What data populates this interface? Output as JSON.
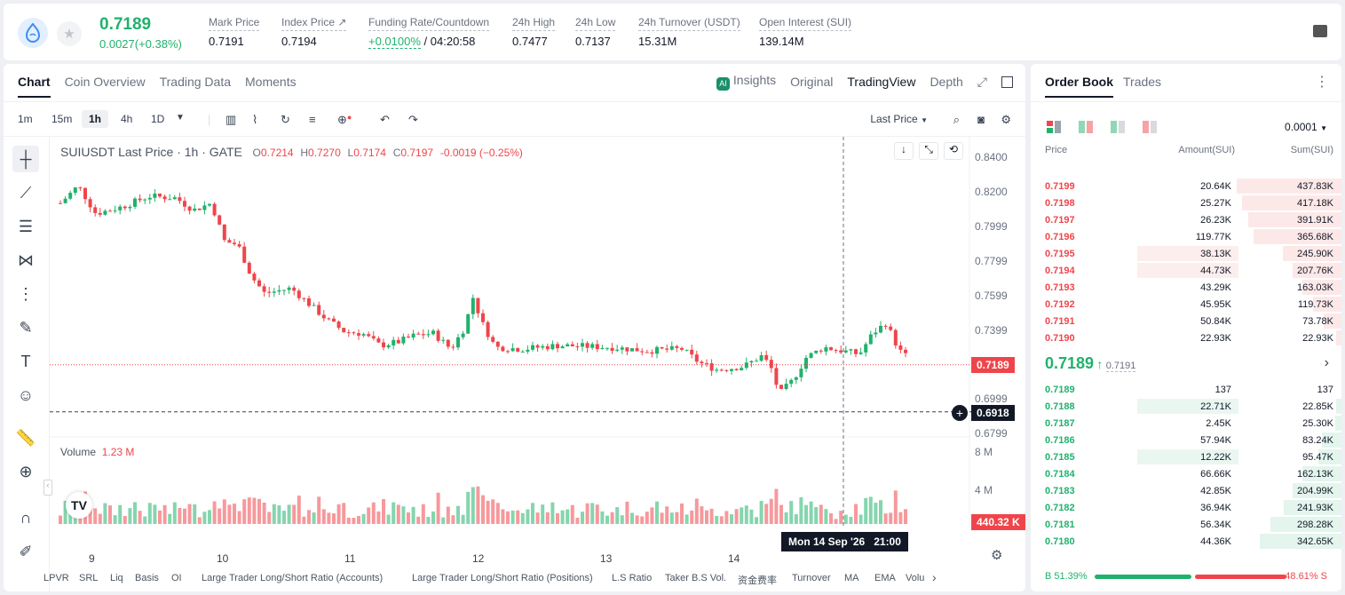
{
  "header": {
    "last_price": "0.7189",
    "change": "0.0027(+0.38%)",
    "stats": [
      {
        "label": "Mark Price",
        "value": "0.7191"
      },
      {
        "label": "Index Price",
        "value": "0.7194"
      },
      {
        "label": "Funding Rate/Countdown",
        "value": "+0.0100%",
        "extra": "/ 04:20:58"
      },
      {
        "label": "24h High",
        "value": "0.7477"
      },
      {
        "label": "24h Low",
        "value": "0.7137"
      },
      {
        "label": "24h Turnover (USDT)",
        "value": "15.31M"
      },
      {
        "label": "Open Interest (SUI)",
        "value": "139.14M"
      }
    ]
  },
  "chart_tabs": {
    "left": [
      "Chart",
      "Coin Overview",
      "Trading Data",
      "Moments"
    ],
    "insights": "Insights",
    "right": [
      "Original",
      "TradingView",
      "Depth"
    ]
  },
  "toolbar": {
    "intervals": [
      "1m",
      "15m",
      "1h",
      "4h",
      "1D"
    ],
    "price_type": "Last Price"
  },
  "legend": {
    "symbol": "SUIUSDT Last Price · 1h · GATE",
    "o": "O",
    "o_val": "0.7214",
    "h": "H",
    "h_val": "0.7270",
    "l": "L",
    "l_val": "0.7174",
    "c": "C",
    "c_val": "0.7197",
    "chg": "-0.0019 (−0.25%)",
    "volume_label": "Volume",
    "volume_val": "1.23 M"
  },
  "price_axis": [
    "0.8400",
    "0.8200",
    "0.7999",
    "0.7799",
    "0.7599",
    "0.7399",
    "0.6999",
    "0.6799"
  ],
  "vol_axis": [
    "8 M",
    "4 M"
  ],
  "tags": {
    "last": "0.7189",
    "cross": "0.6918",
    "vol": "440.32 K"
  },
  "date_axis": [
    "9",
    "10",
    "11",
    "12",
    "13",
    "14"
  ],
  "crosshair_time": "Mon 14 Sep '26   21:00",
  "indicators": [
    "LPVR",
    "SRL",
    "Liq",
    "Basis",
    "OI",
    "Large Trader Long/Short Ratio (Accounts)",
    "Large Trader Long/Short Ratio (Positions)",
    "L.S Ratio",
    "Taker B.S Vol.",
    "资金费率",
    "Turnover",
    "MA",
    "EMA",
    "Volu"
  ],
  "orderbook": {
    "tabs": [
      "Order Book",
      "Trades"
    ],
    "precision": "0.0001",
    "cols": [
      "Price",
      "Amount(SUI)",
      "Sum(SUI)"
    ],
    "asks": [
      {
        "p": "0.7199",
        "a": "20.64K",
        "s": "437.83K",
        "d": 1.0,
        "sz": 0
      },
      {
        "p": "0.7198",
        "a": "25.27K",
        "s": "417.18K",
        "d": 0.95,
        "sz": 0
      },
      {
        "p": "0.7197",
        "a": "26.23K",
        "s": "391.91K",
        "d": 0.89,
        "sz": 0
      },
      {
        "p": "0.7196",
        "a": "119.77K",
        "s": "365.68K",
        "d": 0.84,
        "sz": 0
      },
      {
        "p": "0.7195",
        "a": "38.13K",
        "s": "245.90K",
        "d": 0.56,
        "sz": 0.68
      },
      {
        "p": "0.7194",
        "a": "44.73K",
        "s": "207.76K",
        "d": 0.47,
        "sz": 0.68
      },
      {
        "p": "0.7193",
        "a": "43.29K",
        "s": "163.03K",
        "d": 0.37,
        "sz": 0
      },
      {
        "p": "0.7192",
        "a": "45.95K",
        "s": "119.73K",
        "d": 0.27,
        "sz": 0
      },
      {
        "p": "0.7191",
        "a": "50.84K",
        "s": "73.78K",
        "d": 0.17,
        "sz": 0
      },
      {
        "p": "0.7190",
        "a": "22.93K",
        "s": "22.93K",
        "d": 0.05,
        "sz": 0
      }
    ],
    "mid_price": "0.7189",
    "mid_mark": "0.7191",
    "bids": [
      {
        "p": "0.7189",
        "a": "137",
        "s": "137",
        "d": 0.0,
        "sz": 0
      },
      {
        "p": "0.7188",
        "a": "22.71K",
        "s": "22.85K",
        "d": 0.05,
        "sz": 0.68
      },
      {
        "p": "0.7187",
        "a": "2.45K",
        "s": "25.30K",
        "d": 0.06,
        "sz": 0
      },
      {
        "p": "0.7186",
        "a": "57.94K",
        "s": "83.24K",
        "d": 0.19,
        "sz": 0
      },
      {
        "p": "0.7185",
        "a": "12.22K",
        "s": "95.47K",
        "d": 0.22,
        "sz": 0.68
      },
      {
        "p": "0.7184",
        "a": "66.66K",
        "s": "162.13K",
        "d": 0.37,
        "sz": 0
      },
      {
        "p": "0.7183",
        "a": "42.85K",
        "s": "204.99K",
        "d": 0.47,
        "sz": 0
      },
      {
        "p": "0.7182",
        "a": "36.94K",
        "s": "241.93K",
        "d": 0.55,
        "sz": 0
      },
      {
        "p": "0.7181",
        "a": "56.34K",
        "s": "298.28K",
        "d": 0.68,
        "sz": 0
      },
      {
        "p": "0.7180",
        "a": "44.36K",
        "s": "342.65K",
        "d": 0.78,
        "sz": 0
      }
    ],
    "buy_ratio": "B 51.39%",
    "sell_ratio": "48.61% S",
    "buy_frac": 0.5139
  },
  "colors": {
    "up": "#20b26c",
    "down": "#ef454a"
  }
}
